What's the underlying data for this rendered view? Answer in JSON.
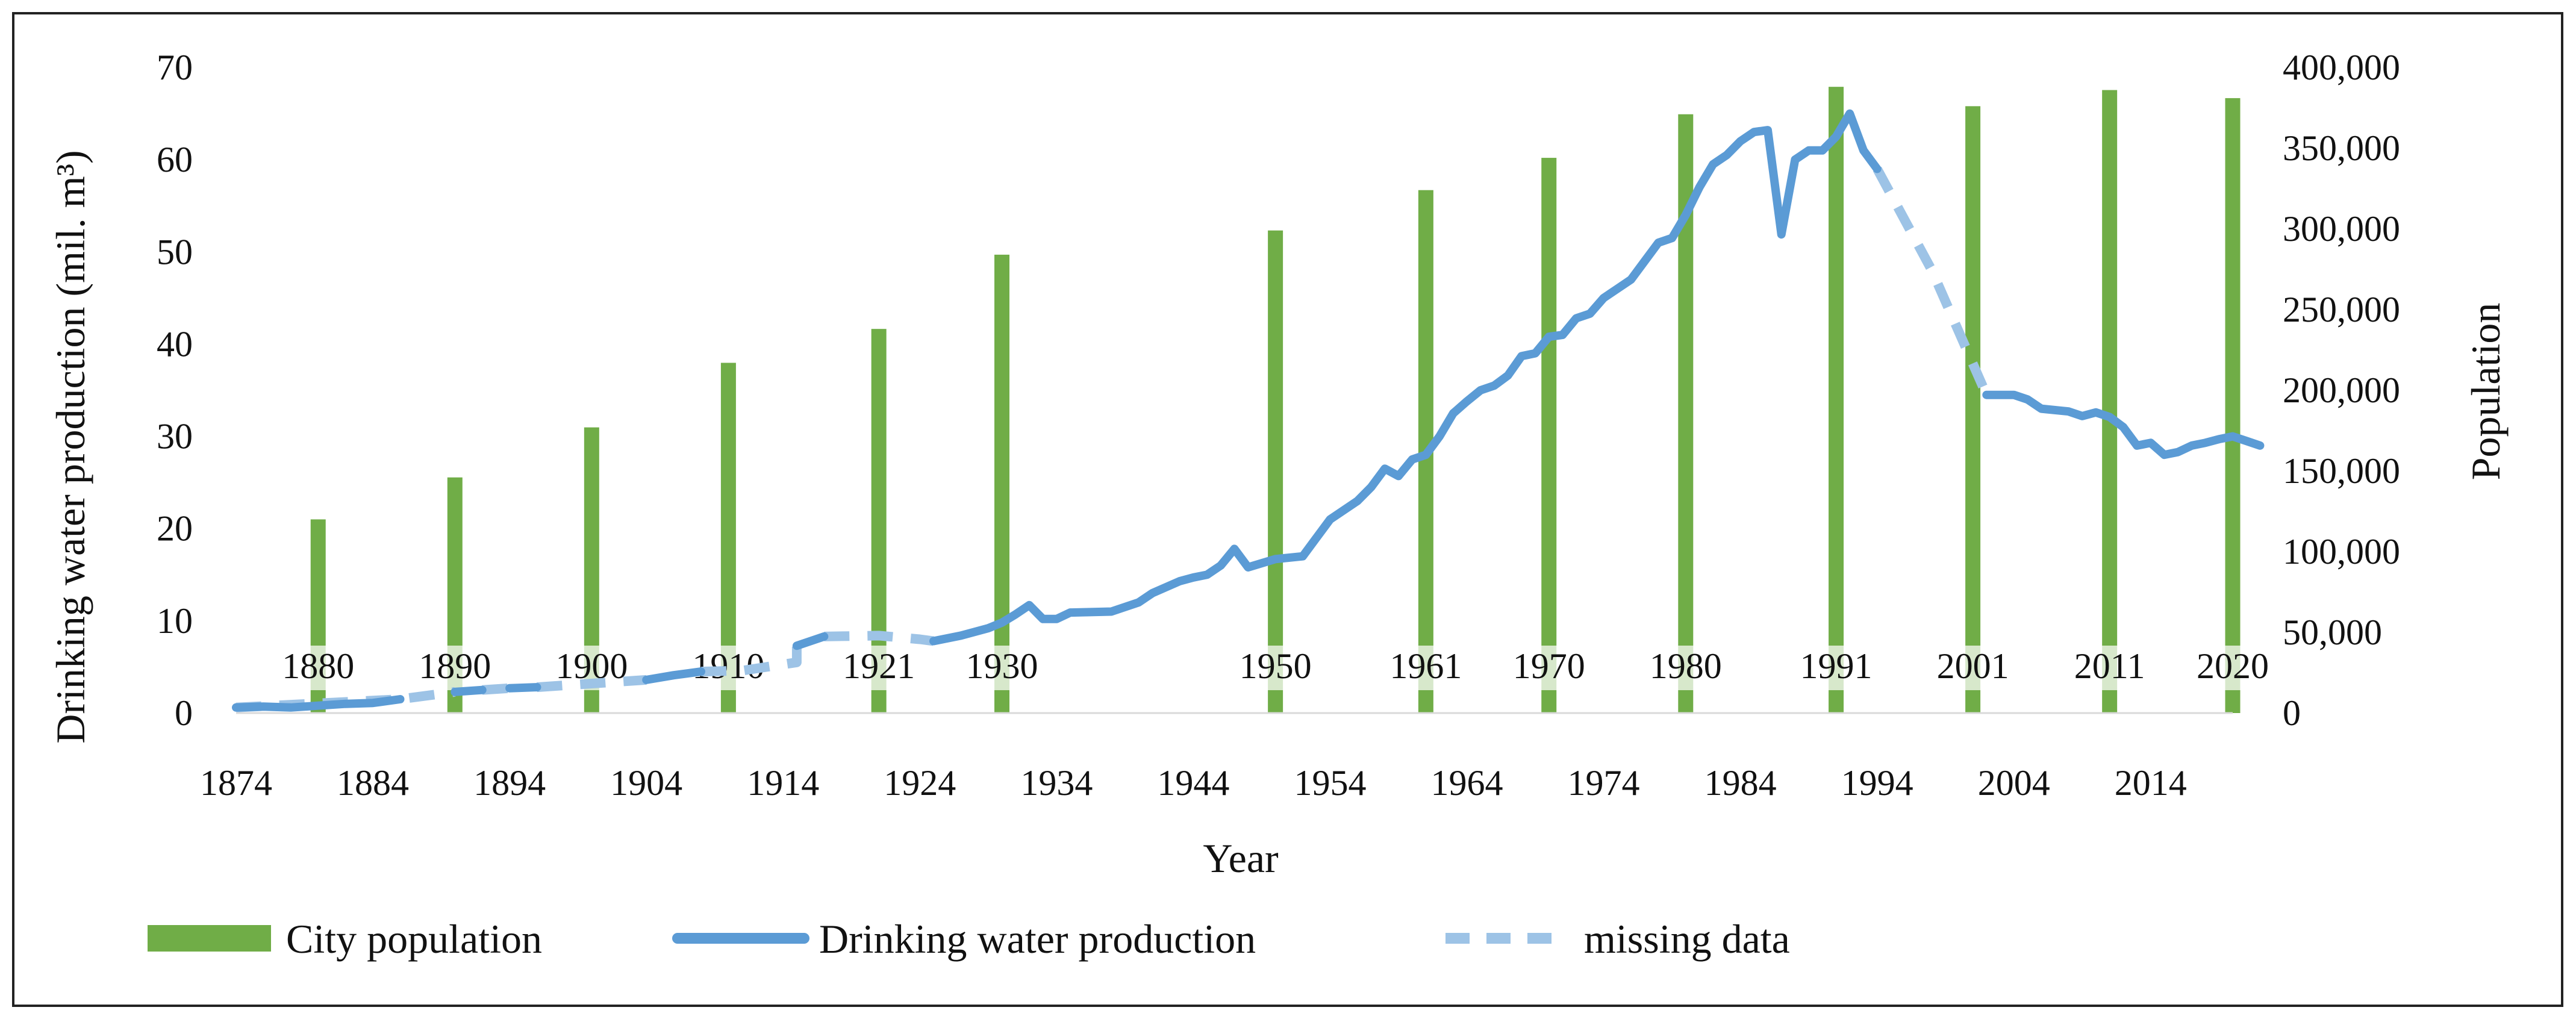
{
  "chart_data": {
    "type": "bar+line",
    "xlabel": "Year",
    "ylabel_left": "Drinking water production (mil. m³)",
    "ylabel_right": "Population",
    "x_range": [
      1874,
      2020
    ],
    "ylim_left": [
      0,
      70
    ],
    "ylim_right": [
      0,
      400000
    ],
    "x_ticks": [
      "1874",
      "1884",
      "1894",
      "1904",
      "1914",
      "1924",
      "1934",
      "1944",
      "1954",
      "1964",
      "1974",
      "1984",
      "1994",
      "2004",
      "2014"
    ],
    "y_left_ticks": [
      "0",
      "10",
      "20",
      "30",
      "40",
      "50",
      "60",
      "70"
    ],
    "y_right_ticks": [
      "0",
      "50,000",
      "100,000",
      "150,000",
      "200,000",
      "250,000",
      "300,000",
      "350,000",
      "400,000"
    ],
    "colors": {
      "population": "#70ad47",
      "water": "#5b9bd5",
      "missing": "#9dc3e6"
    },
    "legend": [
      {
        "key": "population",
        "label": "City population"
      },
      {
        "key": "water",
        "label": "Drinking water production"
      },
      {
        "key": "missing",
        "label": "missing data"
      }
    ],
    "population_bars": [
      {
        "year": 1880,
        "label": "1880",
        "value": 120000
      },
      {
        "year": 1890,
        "label": "1890",
        "value": 146000
      },
      {
        "year": 1900,
        "label": "1900",
        "value": 177000
      },
      {
        "year": 1910,
        "label": "1910",
        "value": 217000
      },
      {
        "year": 1921,
        "label": "1921",
        "value": 238000
      },
      {
        "year": 1930,
        "label": "1930",
        "value": 284000
      },
      {
        "year": 1950,
        "label": "1950",
        "value": 299000
      },
      {
        "year": 1961,
        "label": "1961",
        "value": 324000
      },
      {
        "year": 1970,
        "label": "1970",
        "value": 344000
      },
      {
        "year": 1980,
        "label": "1980",
        "value": 371000
      },
      {
        "year": 1991,
        "label": "1991",
        "value": 388000
      },
      {
        "year": 2001,
        "label": "2001",
        "value": 376000
      },
      {
        "year": 2011,
        "label": "2011",
        "value": 386000
      },
      {
        "year": 2020,
        "label": "2020",
        "value": 381000
      }
    ],
    "water_series": [
      [
        [
          1874,
          0.6
        ],
        [
          1876,
          0.7
        ],
        [
          1878,
          0.6
        ],
        [
          1880,
          0.8
        ],
        [
          1882,
          1.0
        ],
        [
          1884,
          1.1
        ],
        [
          1886,
          1.5
        ]
      ],
      [
        [
          1890,
          2.3
        ],
        [
          1892,
          2.5
        ]
      ],
      [
        [
          1894,
          2.7
        ],
        [
          1896,
          2.8
        ]
      ],
      [
        [
          1904,
          3.6
        ],
        [
          1906,
          4.1
        ],
        [
          1908,
          4.5
        ]
      ],
      [
        [
          1915,
          7.3
        ],
        [
          1917,
          8.3
        ]
      ],
      [
        [
          1925,
          7.8
        ],
        [
          1927,
          8.4
        ],
        [
          1929,
          9.2
        ],
        [
          1930,
          9.8
        ],
        [
          1931,
          10.7
        ],
        [
          1932,
          11.7
        ],
        [
          1933,
          10.2
        ],
        [
          1934,
          10.2
        ],
        [
          1935,
          10.9
        ],
        [
          1938,
          11.0
        ],
        [
          1940,
          12.0
        ],
        [
          1941,
          13.0
        ],
        [
          1943,
          14.3
        ],
        [
          1944,
          14.7
        ],
        [
          1945,
          15.0
        ],
        [
          1946,
          16.0
        ],
        [
          1947,
          17.8
        ],
        [
          1948,
          15.8
        ],
        [
          1950,
          16.7
        ],
        [
          1952,
          17.0
        ],
        [
          1953,
          19.0
        ],
        [
          1954,
          21.0
        ],
        [
          1956,
          23.0
        ],
        [
          1957,
          24.5
        ],
        [
          1958,
          26.5
        ],
        [
          1959,
          25.7
        ],
        [
          1960,
          27.5
        ],
        [
          1961,
          28.0
        ],
        [
          1962,
          30.0
        ],
        [
          1963,
          32.5
        ],
        [
          1964,
          33.8
        ],
        [
          1965,
          35.0
        ],
        [
          1966,
          35.5
        ],
        [
          1967,
          36.6
        ],
        [
          1968,
          38.7
        ],
        [
          1969,
          39.0
        ],
        [
          1970,
          40.8
        ],
        [
          1971,
          41.0
        ],
        [
          1972,
          42.8
        ],
        [
          1973,
          43.3
        ],
        [
          1974,
          45.0
        ],
        [
          1975,
          46.0
        ],
        [
          1976,
          47.0
        ],
        [
          1977,
          49.0
        ],
        [
          1978,
          51.0
        ],
        [
          1979,
          51.5
        ],
        [
          1980,
          54.0
        ],
        [
          1981,
          57.0
        ],
        [
          1982,
          59.5
        ],
        [
          1983,
          60.5
        ],
        [
          1984,
          62.0
        ],
        [
          1985,
          63.0
        ],
        [
          1986,
          63.2
        ],
        [
          1987,
          51.9
        ],
        [
          1988,
          60.0
        ],
        [
          1989,
          61.0
        ],
        [
          1990,
          61.0
        ],
        [
          1991,
          62.5
        ],
        [
          1992,
          65.0
        ],
        [
          1993,
          61.0
        ],
        [
          1994,
          59.0
        ]
      ],
      [
        [
          2002,
          34.5
        ],
        [
          2004,
          34.5
        ],
        [
          2005,
          34.0
        ],
        [
          2006,
          33.0
        ],
        [
          2008,
          32.7
        ],
        [
          2009,
          32.2
        ],
        [
          2010,
          32.6
        ],
        [
          2011,
          32.1
        ],
        [
          2012,
          31.0
        ],
        [
          2013,
          29.0
        ],
        [
          2014,
          29.3
        ],
        [
          2015,
          28.0
        ],
        [
          2016,
          28.3
        ],
        [
          2017,
          29.0
        ],
        [
          2018,
          29.3
        ],
        [
          2019,
          29.7
        ],
        [
          2020,
          30.0
        ],
        [
          2021,
          29.5
        ],
        [
          2022,
          29.0
        ]
      ]
    ],
    "missing_series": [
      [
        [
          1874,
          0.6
        ],
        [
          1886,
          1.5
        ],
        [
          1890,
          2.3
        ]
      ],
      [
        [
          1892,
          2.5
        ],
        [
          1894,
          2.7
        ]
      ],
      [
        [
          1896,
          2.8
        ],
        [
          1904,
          3.6
        ]
      ],
      [
        [
          1908,
          4.5
        ],
        [
          1911,
          4.6
        ],
        [
          1915,
          5.5
        ],
        [
          1915,
          7.3
        ]
      ],
      [
        [
          1917,
          8.3
        ],
        [
          1921,
          8.4
        ],
        [
          1924,
          8.0
        ],
        [
          1925,
          7.8
        ]
      ],
      [
        [
          1994,
          59.0
        ],
        [
          1998,
          48.0
        ],
        [
          2002,
          34.5
        ]
      ]
    ]
  }
}
